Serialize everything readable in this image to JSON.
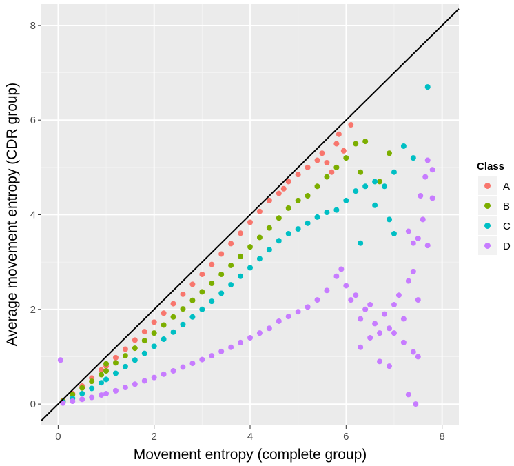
{
  "chart_data": {
    "type": "scatter",
    "xlabel": "Movement entropy (complete group)",
    "ylabel": "Average movement entropy (CDR group)",
    "xlim": [
      -0.35,
      8.35
    ],
    "ylim": [
      -0.45,
      8.45
    ],
    "x_ticks": [
      0,
      2,
      4,
      6,
      8
    ],
    "y_ticks": [
      0,
      2,
      4,
      6,
      8
    ],
    "grid": true,
    "reference_line": "y = x",
    "legend": {
      "title": "Class",
      "placement": "right"
    },
    "series": [
      {
        "name": "A",
        "color": "#F8766D",
        "points": [
          [
            0.1,
            0.07
          ],
          [
            0.3,
            0.22
          ],
          [
            0.5,
            0.38
          ],
          [
            0.7,
            0.55
          ],
          [
            0.9,
            0.72
          ],
          [
            1.0,
            0.8
          ],
          [
            1.2,
            0.98
          ],
          [
            1.4,
            1.16
          ],
          [
            1.6,
            1.35
          ],
          [
            1.8,
            1.53
          ],
          [
            2.0,
            1.73
          ],
          [
            2.2,
            1.92
          ],
          [
            2.4,
            2.12
          ],
          [
            2.6,
            2.32
          ],
          [
            2.8,
            2.53
          ],
          [
            3.0,
            2.74
          ],
          [
            3.2,
            2.95
          ],
          [
            3.4,
            3.17
          ],
          [
            3.6,
            3.39
          ],
          [
            3.8,
            3.61
          ],
          [
            4.0,
            3.84
          ],
          [
            4.2,
            4.07
          ],
          [
            4.4,
            4.3
          ],
          [
            4.6,
            4.45
          ],
          [
            4.7,
            4.55
          ],
          [
            4.8,
            4.7
          ],
          [
            5.0,
            4.85
          ],
          [
            5.2,
            5.0
          ],
          [
            5.4,
            5.15
          ],
          [
            5.5,
            5.3
          ],
          [
            5.6,
            5.1
          ],
          [
            5.8,
            5.5
          ],
          [
            5.85,
            5.7
          ],
          [
            6.1,
            5.9
          ],
          [
            5.7,
            4.9
          ],
          [
            5.95,
            5.35
          ]
        ]
      },
      {
        "name": "B",
        "color": "#7CAE00",
        "points": [
          [
            0.1,
            0.06
          ],
          [
            0.3,
            0.2
          ],
          [
            0.5,
            0.34
          ],
          [
            0.7,
            0.48
          ],
          [
            0.9,
            0.62
          ],
          [
            1.0,
            0.7
          ],
          [
            1.0,
            0.85
          ],
          [
            1.2,
            0.87
          ],
          [
            1.4,
            1.02
          ],
          [
            1.6,
            1.18
          ],
          [
            1.8,
            1.34
          ],
          [
            2.0,
            1.5
          ],
          [
            2.2,
            1.67
          ],
          [
            2.4,
            1.84
          ],
          [
            2.6,
            2.01
          ],
          [
            2.8,
            2.19
          ],
          [
            3.0,
            2.37
          ],
          [
            3.2,
            2.55
          ],
          [
            3.4,
            2.74
          ],
          [
            3.6,
            2.93
          ],
          [
            3.8,
            3.12
          ],
          [
            4.0,
            3.32
          ],
          [
            4.2,
            3.52
          ],
          [
            4.4,
            3.72
          ],
          [
            4.6,
            3.93
          ],
          [
            4.8,
            4.14
          ],
          [
            5.0,
            4.3
          ],
          [
            5.2,
            4.4
          ],
          [
            5.4,
            4.6
          ],
          [
            5.6,
            4.8
          ],
          [
            5.8,
            5.0
          ],
          [
            6.0,
            5.2
          ],
          [
            6.2,
            5.5
          ],
          [
            6.4,
            5.55
          ],
          [
            6.3,
            4.9
          ],
          [
            6.9,
            5.3
          ],
          [
            6.7,
            4.7
          ]
        ]
      },
      {
        "name": "C",
        "color": "#00BFC4",
        "points": [
          [
            0.1,
            0.04
          ],
          [
            0.3,
            0.12
          ],
          [
            0.5,
            0.22
          ],
          [
            0.7,
            0.33
          ],
          [
            0.9,
            0.45
          ],
          [
            1.0,
            0.52
          ],
          [
            1.2,
            0.65
          ],
          [
            1.4,
            0.79
          ],
          [
            1.6,
            0.93
          ],
          [
            1.8,
            1.07
          ],
          [
            2.0,
            1.22
          ],
          [
            2.2,
            1.37
          ],
          [
            2.4,
            1.52
          ],
          [
            2.6,
            1.68
          ],
          [
            2.8,
            1.84
          ],
          [
            3.0,
            2.0
          ],
          [
            3.2,
            2.17
          ],
          [
            3.4,
            2.34
          ],
          [
            3.6,
            2.52
          ],
          [
            3.8,
            2.7
          ],
          [
            4.0,
            2.88
          ],
          [
            4.2,
            3.07
          ],
          [
            4.4,
            3.26
          ],
          [
            4.6,
            3.45
          ],
          [
            4.8,
            3.6
          ],
          [
            5.0,
            3.7
          ],
          [
            5.2,
            3.82
          ],
          [
            5.4,
            3.95
          ],
          [
            5.6,
            4.05
          ],
          [
            5.8,
            4.1
          ],
          [
            6.0,
            4.3
          ],
          [
            6.2,
            4.5
          ],
          [
            6.4,
            4.6
          ],
          [
            6.6,
            4.7
          ],
          [
            6.8,
            4.6
          ],
          [
            7.0,
            4.9
          ],
          [
            7.2,
            5.45
          ],
          [
            7.4,
            5.2
          ],
          [
            7.7,
            6.7
          ],
          [
            6.3,
            3.4
          ],
          [
            7.0,
            3.6
          ],
          [
            6.6,
            4.2
          ],
          [
            6.9,
            3.9
          ]
        ]
      },
      {
        "name": "D",
        "color": "#C77CFF",
        "points": [
          [
            0.05,
            0.93
          ],
          [
            0.1,
            0.02
          ],
          [
            0.3,
            0.06
          ],
          [
            0.5,
            0.1
          ],
          [
            0.7,
            0.14
          ],
          [
            0.9,
            0.19
          ],
          [
            1.0,
            0.22
          ],
          [
            1.2,
            0.28
          ],
          [
            1.4,
            0.35
          ],
          [
            1.6,
            0.42
          ],
          [
            1.8,
            0.49
          ],
          [
            2.0,
            0.56
          ],
          [
            2.2,
            0.63
          ],
          [
            2.4,
            0.7
          ],
          [
            2.6,
            0.78
          ],
          [
            2.8,
            0.86
          ],
          [
            3.0,
            0.94
          ],
          [
            3.2,
            1.02
          ],
          [
            3.4,
            1.11
          ],
          [
            3.6,
            1.2
          ],
          [
            3.8,
            1.3
          ],
          [
            4.0,
            1.4
          ],
          [
            4.2,
            1.5
          ],
          [
            4.4,
            1.6
          ],
          [
            4.6,
            1.75
          ],
          [
            4.8,
            1.85
          ],
          [
            5.0,
            1.95
          ],
          [
            5.2,
            2.05
          ],
          [
            5.4,
            2.2
          ],
          [
            5.6,
            2.4
          ],
          [
            5.8,
            2.7
          ],
          [
            5.9,
            2.85
          ],
          [
            6.0,
            2.5
          ],
          [
            6.1,
            2.2
          ],
          [
            6.2,
            2.3
          ],
          [
            6.3,
            1.8
          ],
          [
            6.4,
            2.0
          ],
          [
            6.5,
            2.1
          ],
          [
            6.6,
            1.7
          ],
          [
            6.7,
            1.5
          ],
          [
            6.8,
            1.9
          ],
          [
            6.9,
            1.6
          ],
          [
            7.0,
            2.1
          ],
          [
            7.1,
            2.3
          ],
          [
            7.2,
            1.8
          ],
          [
            7.3,
            2.6
          ],
          [
            7.4,
            2.8
          ],
          [
            7.5,
            2.2
          ],
          [
            6.3,
            1.2
          ],
          [
            6.5,
            1.4
          ],
          [
            6.7,
            0.9
          ],
          [
            6.9,
            0.8
          ],
          [
            7.0,
            1.5
          ],
          [
            7.2,
            1.3
          ],
          [
            7.4,
            1.1
          ],
          [
            7.5,
            1.0
          ],
          [
            7.3,
            0.2
          ],
          [
            7.45,
            0.0
          ],
          [
            7.4,
            3.4
          ],
          [
            7.5,
            3.5
          ],
          [
            7.6,
            3.9
          ],
          [
            7.7,
            3.35
          ],
          [
            7.55,
            4.4
          ],
          [
            7.65,
            4.8
          ],
          [
            7.8,
            4.95
          ],
          [
            7.8,
            4.35
          ],
          [
            7.7,
            5.15
          ],
          [
            7.3,
            3.65
          ]
        ]
      }
    ]
  }
}
